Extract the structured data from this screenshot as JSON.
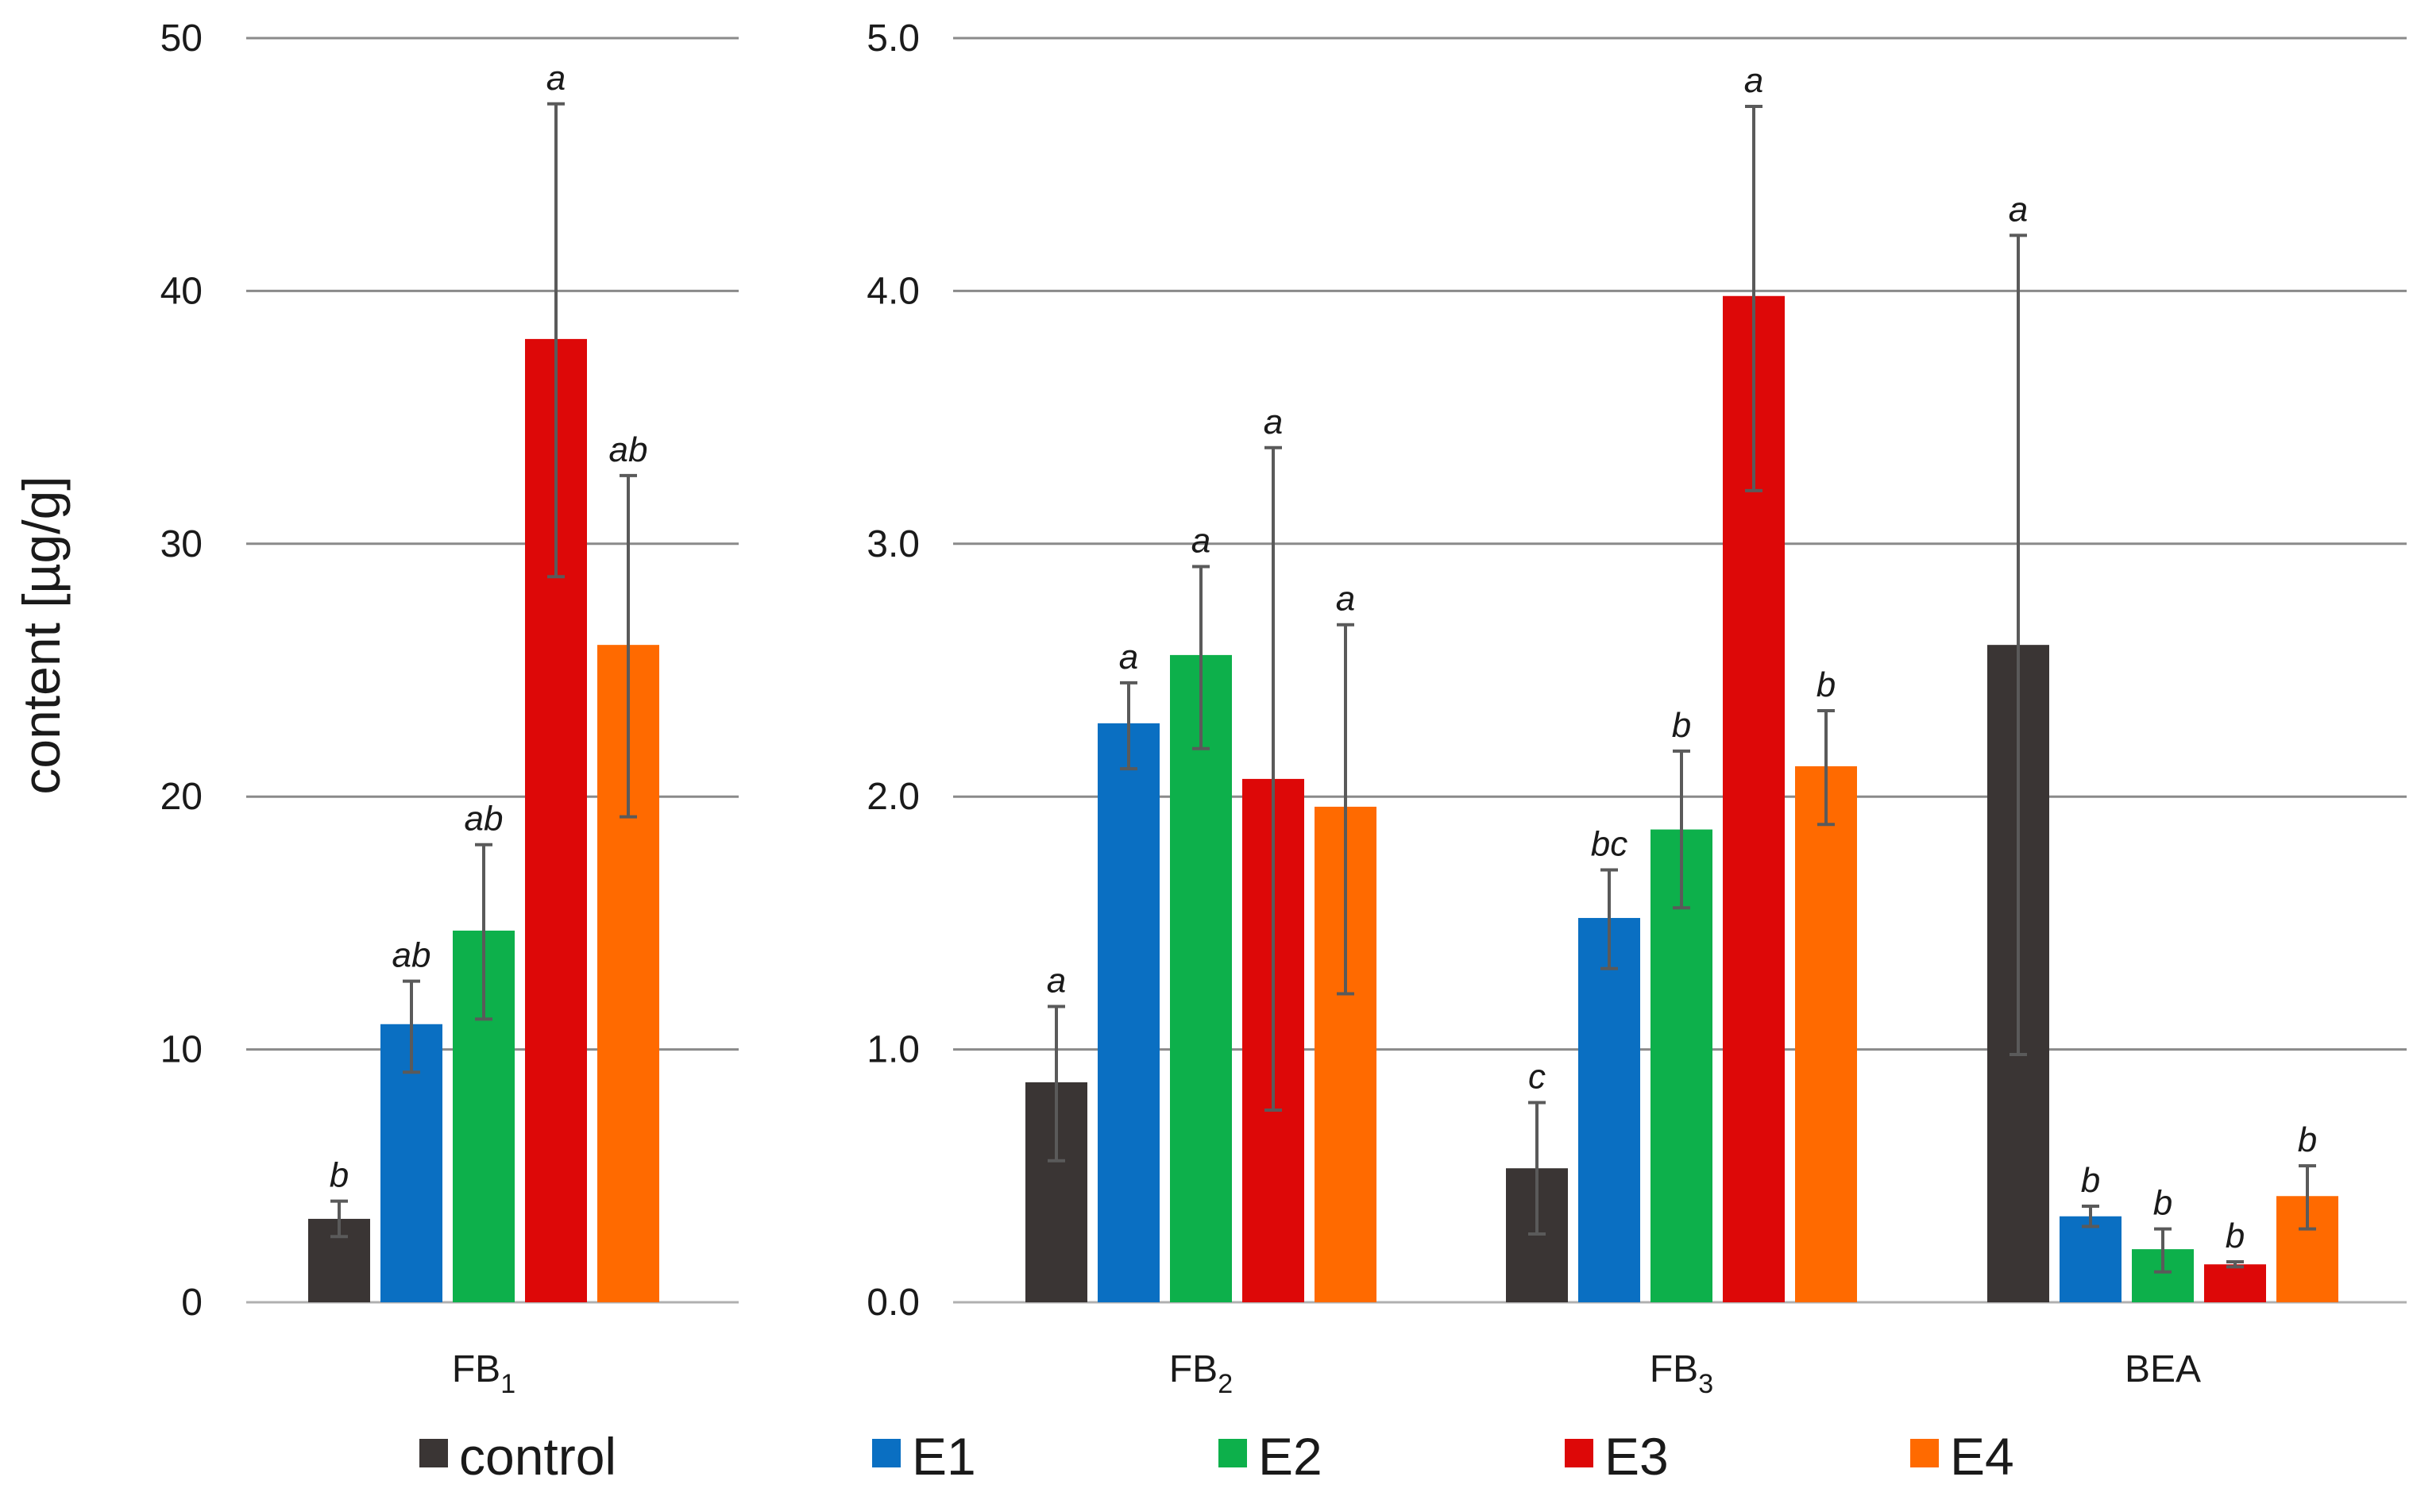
{
  "chart_data": [
    {
      "type": "bar",
      "panel": "left",
      "ylabel": "content [µg/g]",
      "ylim": [
        0,
        50
      ],
      "yticks": [
        "0",
        "10",
        "20",
        "30",
        "40",
        "50"
      ],
      "categories": [
        {
          "base": "FB",
          "sub": "1"
        }
      ],
      "series": [
        {
          "name": "control",
          "values": [
            3.3
          ],
          "err_low": [
            2.6
          ],
          "err_high": [
            4.0
          ],
          "sig": [
            "b"
          ]
        },
        {
          "name": "E1",
          "values": [
            11.0
          ],
          "err_low": [
            9.1
          ],
          "err_high": [
            12.7
          ],
          "sig": [
            "ab"
          ]
        },
        {
          "name": "E2",
          "values": [
            14.7
          ],
          "err_low": [
            11.2
          ],
          "err_high": [
            18.1
          ],
          "sig": [
            "ab"
          ]
        },
        {
          "name": "E3",
          "values": [
            38.1
          ],
          "err_low": [
            28.7
          ],
          "err_high": [
            47.4
          ],
          "sig": [
            "a"
          ]
        },
        {
          "name": "E4",
          "values": [
            26.0
          ],
          "err_low": [
            19.2
          ],
          "err_high": [
            32.7
          ],
          "sig": [
            "ab"
          ]
        }
      ]
    },
    {
      "type": "bar",
      "panel": "right",
      "ylim": [
        0,
        5
      ],
      "yticks": [
        "0.0",
        "1.0",
        "2.0",
        "3.0",
        "4.0",
        "5.0"
      ],
      "categories": [
        {
          "base": "FB",
          "sub": "2"
        },
        {
          "base": "FB",
          "sub": "3"
        },
        {
          "base": "BEA",
          "sub": ""
        }
      ],
      "series": [
        {
          "name": "control",
          "values": [
            0.87,
            0.53,
            2.6
          ],
          "err_low": [
            0.56,
            0.27,
            0.98
          ],
          "err_high": [
            1.17,
            0.79,
            4.22
          ],
          "sig": [
            "a",
            "c",
            "a"
          ]
        },
        {
          "name": "E1",
          "values": [
            2.29,
            1.52,
            0.34
          ],
          "err_low": [
            2.11,
            1.32,
            0.3
          ],
          "err_high": [
            2.45,
            1.71,
            0.38
          ],
          "sig": [
            "a",
            "bc",
            "b"
          ]
        },
        {
          "name": "E2",
          "values": [
            2.56,
            1.87,
            0.21
          ],
          "err_low": [
            2.19,
            1.56,
            0.12
          ],
          "err_high": [
            2.91,
            2.18,
            0.29
          ],
          "sig": [
            "a",
            "b",
            "b"
          ]
        },
        {
          "name": "E3",
          "values": [
            2.07,
            3.98,
            0.15
          ],
          "err_low": [
            0.76,
            3.21,
            0.14
          ],
          "err_high": [
            3.38,
            4.73,
            0.16
          ],
          "sig": [
            "a",
            "a",
            "b"
          ]
        },
        {
          "name": "E4",
          "values": [
            1.96,
            2.12,
            0.42
          ],
          "err_low": [
            1.22,
            1.89,
            0.29
          ],
          "err_high": [
            2.68,
            2.34,
            0.54
          ],
          "sig": [
            "a",
            "b",
            "b"
          ]
        }
      ]
    }
  ],
  "legend": {
    "position": "bottom",
    "entries": [
      {
        "label": "control",
        "color": "#3a3534"
      },
      {
        "label": "E1",
        "color": "#0a6fc2"
      },
      {
        "label": "E2",
        "color": "#0db04b"
      },
      {
        "label": "E3",
        "color": "#dd0808"
      },
      {
        "label": "E4",
        "color": "#ff6a00"
      }
    ]
  },
  "colors": {
    "grid": "#8a8a8a",
    "axis": "#b0b0b0",
    "error_bar": "#5a5a5a"
  }
}
